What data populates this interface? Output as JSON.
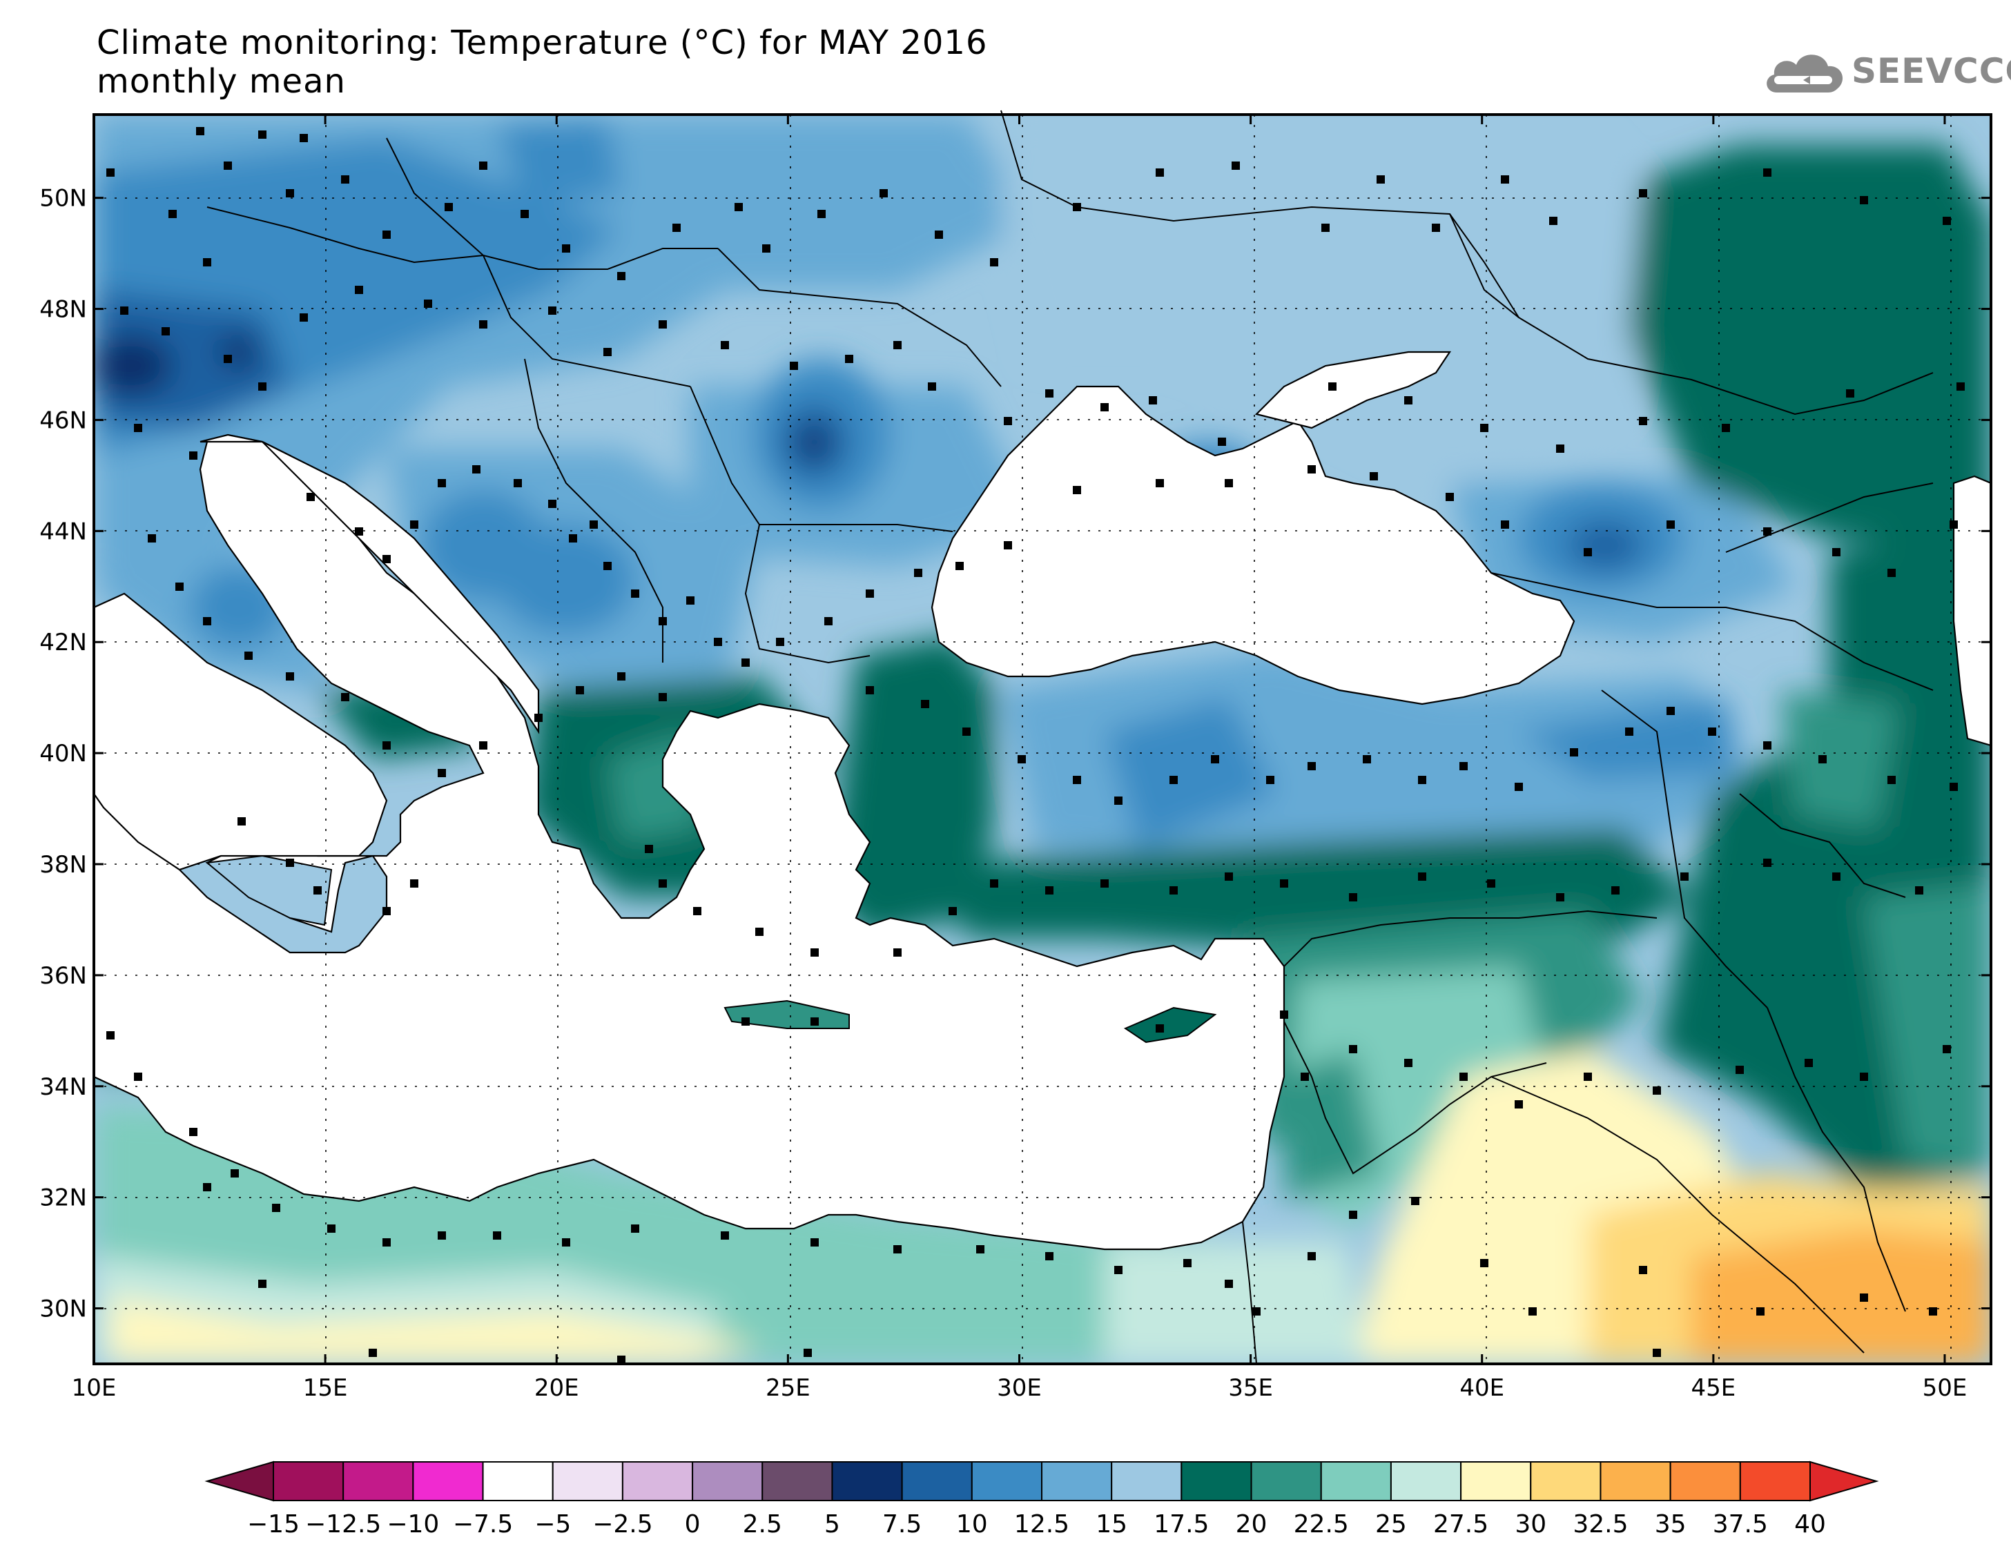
{
  "title": {
    "line1": "Climate monitoring: Temperature (°C) for MAY 2016",
    "line2": "monthly mean"
  },
  "logo": {
    "text": "SEEVCCC",
    "icon": "cloud-icon",
    "color": "#8a8a8a"
  },
  "map": {
    "lon_range": [
      10,
      51
    ],
    "lat_range": [
      29,
      51.5
    ],
    "lon_ticks": [
      "10E",
      "15E",
      "20E",
      "25E",
      "30E",
      "35E",
      "40E",
      "45E",
      "50E"
    ],
    "lat_ticks": [
      "50N",
      "48N",
      "46N",
      "44N",
      "42N",
      "40N",
      "38N",
      "36N",
      "34N",
      "32N",
      "30N"
    ],
    "gridlines": "dotted",
    "sea_color": "#ffffff",
    "station_marker": "black-square"
  },
  "colorbar": {
    "labels": [
      "-15",
      "-12.5",
      "-10",
      "-7.5",
      "-5",
      "-2.5",
      "0",
      "2.5",
      "5",
      "7.5",
      "10",
      "12.5",
      "15",
      "17.5",
      "20",
      "22.5",
      "25",
      "27.5",
      "30",
      "32.5",
      "35",
      "37.5",
      "40"
    ],
    "under_color": "#7a0f40",
    "over_color": "#e0282a",
    "colors": [
      "#a0105c",
      "#c31a8a",
      "#f02ad0",
      "#ffffff",
      "#efe2f3",
      "#d9b7df",
      "#ad8dbf",
      "#6b4c6b",
      "#0b2f6b",
      "#1c61a1",
      "#3b8bc4",
      "#66aad5",
      "#9dc8e2",
      "#006b5b",
      "#2f9484",
      "#7ecdbd",
      "#c4e9e0",
      "#fff8c0",
      "#fed97a",
      "#fcb14c",
      "#fb8f3c",
      "#f34b2a"
    ]
  }
}
